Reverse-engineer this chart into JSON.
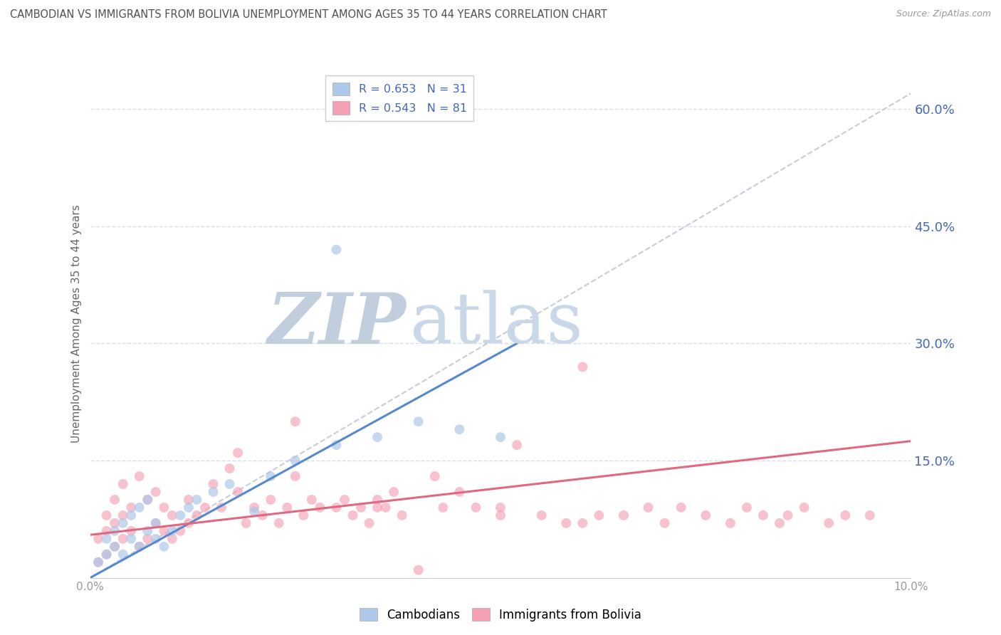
{
  "title": "CAMBODIAN VS IMMIGRANTS FROM BOLIVIA UNEMPLOYMENT AMONG AGES 35 TO 44 YEARS CORRELATION CHART",
  "source": "Source: ZipAtlas.com",
  "ylabel": "Unemployment Among Ages 35 to 44 years",
  "xlim": [
    0.0,
    0.1
  ],
  "ylim": [
    0.0,
    0.65
  ],
  "yticks_right": [
    0.15,
    0.3,
    0.45,
    0.6
  ],
  "ytick_labels_right": [
    "15.0%",
    "30.0%",
    "45.0%",
    "60.0%"
  ],
  "legend_r1": "R = 0.653",
  "legend_n1": "N = 31",
  "legend_r2": "R = 0.543",
  "legend_n2": "N = 81",
  "label_cambodians": "Cambodians",
  "label_bolivia": "Immigrants from Bolivia",
  "color_blue": "#adc8e8",
  "color_pink": "#f5a0b5",
  "color_line_blue": "#5588cc",
  "color_line_pink": "#e06880",
  "color_ref_line": "#c8ccd8",
  "color_watermark_zip": "#c8d4e4",
  "color_watermark_atlas": "#b8d0e0",
  "color_title": "#505050",
  "color_right_axis": "#4466bb",
  "background_color": "#ffffff",
  "grid_color": "#d8dce8",
  "cambodian_x": [
    0.001,
    0.002,
    0.002,
    0.003,
    0.003,
    0.004,
    0.004,
    0.005,
    0.005,
    0.006,
    0.006,
    0.007,
    0.007,
    0.008,
    0.008,
    0.009,
    0.01,
    0.011,
    0.012,
    0.013,
    0.015,
    0.017,
    0.02,
    0.022,
    0.025,
    0.03,
    0.035,
    0.04,
    0.045,
    0.05,
    0.03
  ],
  "cambodian_y": [
    0.02,
    0.03,
    0.05,
    0.04,
    0.06,
    0.03,
    0.07,
    0.05,
    0.08,
    0.04,
    0.09,
    0.06,
    0.1,
    0.05,
    0.07,
    0.04,
    0.06,
    0.08,
    0.09,
    0.1,
    0.11,
    0.12,
    0.085,
    0.13,
    0.15,
    0.17,
    0.18,
    0.2,
    0.19,
    0.18,
    0.42
  ],
  "bolivia_x": [
    0.001,
    0.001,
    0.002,
    0.002,
    0.002,
    0.003,
    0.003,
    0.003,
    0.004,
    0.004,
    0.004,
    0.005,
    0.005,
    0.006,
    0.006,
    0.007,
    0.007,
    0.008,
    0.008,
    0.009,
    0.009,
    0.01,
    0.01,
    0.011,
    0.012,
    0.012,
    0.013,
    0.014,
    0.015,
    0.016,
    0.017,
    0.018,
    0.019,
    0.02,
    0.021,
    0.022,
    0.023,
    0.024,
    0.025,
    0.026,
    0.027,
    0.028,
    0.03,
    0.031,
    0.032,
    0.033,
    0.034,
    0.035,
    0.036,
    0.037,
    0.038,
    0.04,
    0.042,
    0.043,
    0.045,
    0.047,
    0.05,
    0.052,
    0.055,
    0.058,
    0.06,
    0.062,
    0.065,
    0.068,
    0.07,
    0.072,
    0.075,
    0.078,
    0.08,
    0.082,
    0.084,
    0.085,
    0.087,
    0.09,
    0.092,
    0.095,
    0.018,
    0.025,
    0.035,
    0.05,
    0.06
  ],
  "bolivia_y": [
    0.02,
    0.05,
    0.03,
    0.06,
    0.08,
    0.04,
    0.07,
    0.1,
    0.05,
    0.08,
    0.12,
    0.06,
    0.09,
    0.04,
    0.13,
    0.05,
    0.1,
    0.07,
    0.11,
    0.06,
    0.09,
    0.05,
    0.08,
    0.06,
    0.07,
    0.1,
    0.08,
    0.09,
    0.12,
    0.09,
    0.14,
    0.11,
    0.07,
    0.09,
    0.08,
    0.1,
    0.07,
    0.09,
    0.13,
    0.08,
    0.1,
    0.09,
    0.09,
    0.1,
    0.08,
    0.09,
    0.07,
    0.1,
    0.09,
    0.11,
    0.08,
    0.01,
    0.13,
    0.09,
    0.11,
    0.09,
    0.08,
    0.17,
    0.08,
    0.07,
    0.07,
    0.08,
    0.08,
    0.09,
    0.07,
    0.09,
    0.08,
    0.07,
    0.09,
    0.08,
    0.07,
    0.08,
    0.09,
    0.07,
    0.08,
    0.08,
    0.16,
    0.2,
    0.09,
    0.09,
    0.27
  ],
  "cam_line_x0": 0.0,
  "cam_line_y0": 0.0,
  "cam_line_x1": 0.052,
  "cam_line_y1": 0.3,
  "bol_line_x0": 0.0,
  "bol_line_y0": 0.055,
  "bol_line_x1": 0.1,
  "bol_line_y1": 0.175,
  "ref_line_x0": 0.0,
  "ref_line_y0": 0.0,
  "ref_line_x1": 0.1,
  "ref_line_y1": 0.62
}
